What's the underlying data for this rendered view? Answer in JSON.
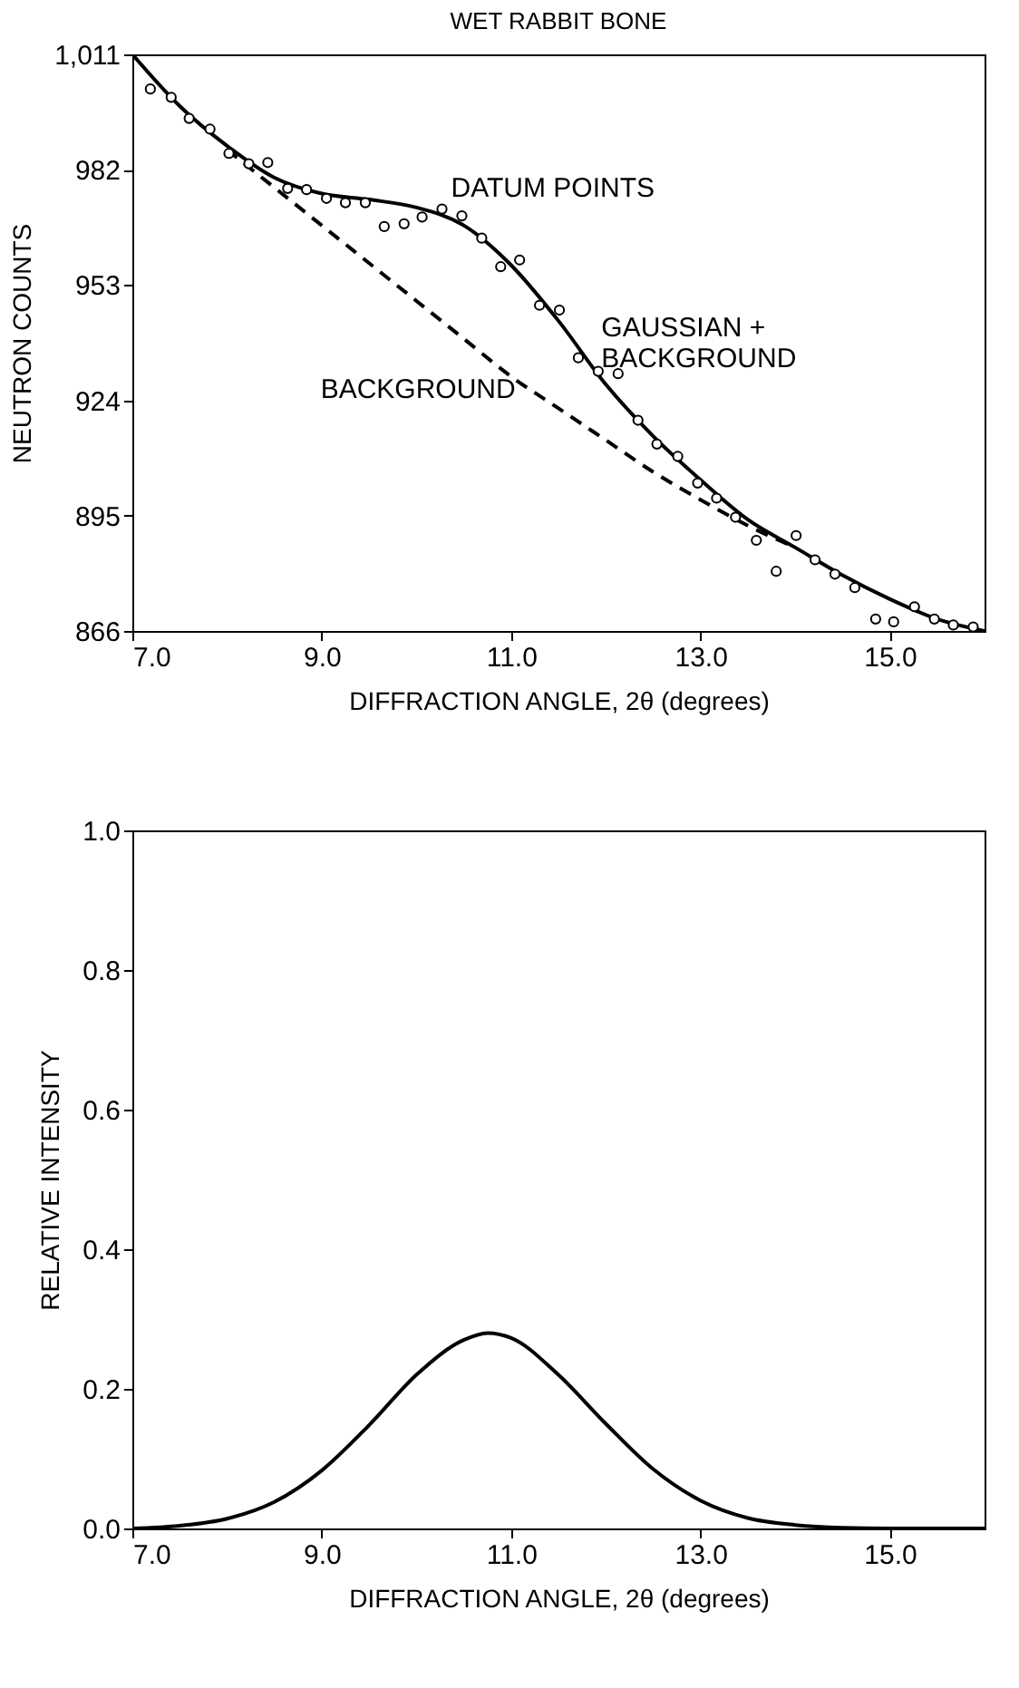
{
  "chart_data": [
    {
      "type": "scatter",
      "title": "WET RABBIT BONE",
      "xlabel": "DIFFRACTION ANGLE, 2θ (degrees)",
      "ylabel": "NEUTRON COUNTS",
      "xlim": [
        7.0,
        16.0
      ],
      "xticks": [
        {
          "value": 7,
          "label": "7.0"
        },
        {
          "value": 9,
          "label": "9.0"
        },
        {
          "value": 11,
          "label": "11.0"
        },
        {
          "value": 13,
          "label": "13.0"
        },
        {
          "value": 15,
          "label": "15.0"
        }
      ],
      "ylim": [
        866,
        1011
      ],
      "yticks": [
        866,
        895,
        924,
        953,
        982,
        {
          "value": 1011,
          "label": "1,011"
        }
      ],
      "grid": false,
      "series": [
        {
          "marker": "circle",
          "color": "#000000",
          "x": [
            7.19,
            7.41,
            7.6,
            7.82,
            8.02,
            8.23,
            8.43,
            8.64,
            8.84,
            9.05,
            9.25,
            9.46,
            9.66,
            9.87,
            10.06,
            10.27,
            10.48,
            10.69,
            10.89,
            11.09,
            11.3,
            11.51,
            11.71,
            11.92,
            12.13,
            12.34,
            12.54,
            12.76,
            12.97,
            13.17,
            13.37,
            13.59,
            13.8,
            14.01,
            14.21,
            14.42,
            14.63,
            14.85,
            15.04,
            15.26,
            15.47,
            15.67,
            15.88
          ],
          "values": [
            1002.3,
            1000.2,
            994.9,
            992.2,
            986.1,
            983.5,
            983.8,
            977.3,
            977.0,
            974.8,
            973.7,
            973.7,
            967.7,
            968.4,
            970.1,
            972.1,
            970.4,
            964.8,
            957.6,
            959.3,
            947.9,
            946.7,
            934.7,
            931.3,
            930.7,
            919.0,
            913.0,
            909.9,
            903.2,
            899.4,
            894.6,
            888.8,
            881.0,
            890.0,
            883.9,
            880.3,
            876.9,
            869.0,
            868.3,
            872.1,
            869.0,
            867.5,
            867.0
          ]
        },
        {
          "type": "line",
          "line_style": "solid",
          "color": "#000000",
          "x": [
            7.0,
            7.5,
            8.0,
            8.5,
            9.0,
            9.5,
            10.0,
            10.5,
            11.0,
            11.5,
            12.0,
            12.5,
            13.0,
            13.5,
            14.0,
            14.5,
            15.0,
            15.5,
            16.0
          ],
          "values": [
            1011,
            998,
            988,
            980,
            976,
            974.5,
            972.5,
            968,
            958,
            944,
            928,
            915,
            904,
            894,
            887,
            880,
            874,
            869,
            866
          ]
        },
        {
          "type": "line",
          "line_style": "dashed",
          "color": "#000000",
          "x": [
            8.0,
            8.5,
            9.0,
            9.5,
            10.0,
            10.5,
            11.0,
            11.5,
            12.0,
            12.5,
            13.0,
            13.5,
            14.0
          ],
          "values": [
            987,
            977.5,
            968,
            958.5,
            949,
            939.5,
            930,
            922,
            914,
            906,
            899,
            892.5,
            887
          ]
        }
      ],
      "annotations": [
        {
          "text": "DATUM POINTS",
          "x": 10.27,
          "y": 972.1
        },
        {
          "text": "GAUSSIAN +\nBACKGROUND",
          "x": 11.8,
          "y": 937
        },
        {
          "text": "BACKGROUND",
          "x": 11.2,
          "y": 926.8
        }
      ]
    },
    {
      "type": "line",
      "xlabel": "DIFFRACTION ANGLE, 2θ (degrees)",
      "ylabel": "RELATIVE INTENSITY",
      "xlim": [
        7.0,
        16.0
      ],
      "xticks": [
        {
          "value": 7,
          "label": "7.0"
        },
        {
          "value": 9,
          "label": "9.0"
        },
        {
          "value": 11,
          "label": "11.0"
        },
        {
          "value": 13,
          "label": "13.0"
        },
        {
          "value": 15,
          "label": "15.0"
        }
      ],
      "ylim": [
        0,
        1
      ],
      "yticks": [
        {
          "value": 0,
          "label": "0.0"
        },
        {
          "value": 0.2,
          "label": "0.2"
        },
        {
          "value": 0.4,
          "label": "0.4"
        },
        {
          "value": 0.6,
          "label": "0.6"
        },
        {
          "value": 0.8,
          "label": "0.8"
        },
        {
          "value": 1,
          "label": "1.0"
        }
      ],
      "grid": false,
      "series": [
        {
          "line_style": "solid",
          "color": "#000000",
          "x": [
            7.0,
            7.5,
            8.0,
            8.5,
            9.0,
            9.5,
            10.0,
            10.5,
            10.75,
            11.0,
            11.5,
            12.0,
            12.5,
            13.0,
            13.5,
            14.0,
            14.5,
            15.0,
            16.0
          ],
          "values": [
            0.0,
            0.004,
            0.014,
            0.038,
            0.083,
            0.148,
            0.22,
            0.27,
            0.28,
            0.273,
            0.22,
            0.15,
            0.085,
            0.04,
            0.015,
            0.005,
            0.001,
            0.0,
            0.0
          ]
        }
      ]
    }
  ]
}
